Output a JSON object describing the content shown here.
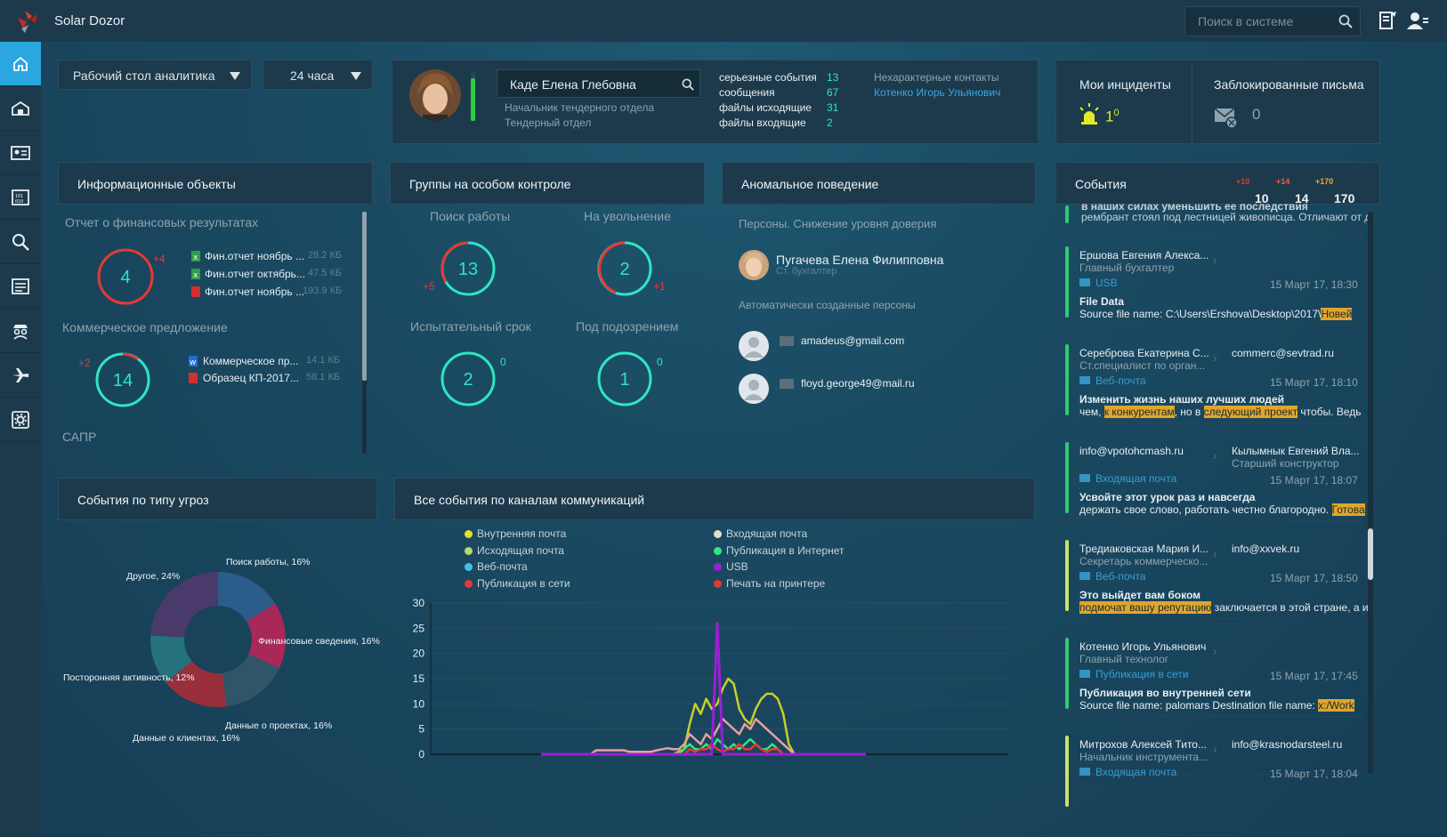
{
  "app": {
    "title": "Solar Dozor"
  },
  "search": {
    "placeholder": "Поиск в системе"
  },
  "sidebar": {
    "items": [
      "home",
      "dashboard",
      "contacts",
      "reports",
      "search",
      "documents",
      "agent",
      "travel",
      "settings"
    ]
  },
  "filters": {
    "workspace": "Рабочий стол аналитика",
    "period": "24 часа"
  },
  "person_card": {
    "name": "Каде Елена Глебовна",
    "position": "Начальник тендерного отдела",
    "department": "Тендерный отдел",
    "stats": [
      {
        "label": "серьезные события",
        "value": "13"
      },
      {
        "label": "сообщения",
        "value": "67"
      },
      {
        "label": "файлы исходящие",
        "value": "31"
      },
      {
        "label": "файлы входящие",
        "value": "2"
      }
    ],
    "contacts_title": "Нехарактерные контакты",
    "contacts_name": "Котенко Игорь Ульянович"
  },
  "my_incidents": {
    "title": "Мои инциденты",
    "count": "1",
    "sup": "0"
  },
  "blocked_mail": {
    "title": "Заблокированные письма",
    "count": "0"
  },
  "info_objects": {
    "title": "Информационные объекты",
    "group1": {
      "title": "Отчет о финансовых результатах",
      "value": "4",
      "delta": "+4",
      "files": [
        {
          "name": "Фин.отчет ноябрь ...",
          "size": "28.2 КБ"
        },
        {
          "name": "Фин.отчет октябрь...",
          "size": "47.5 КБ"
        },
        {
          "name": "Фин.отчет ноябрь ...",
          "size": "193.9 КБ"
        }
      ]
    },
    "group2": {
      "title": "Коммерческое предложение",
      "value": "14",
      "delta": "+2",
      "files": [
        {
          "name": "Коммерческое пр...",
          "size": "14.1 КБ"
        },
        {
          "name": "Образец КП-2017...",
          "size": "58.1 КБ"
        }
      ]
    },
    "group3": {
      "title": "САПР"
    }
  },
  "control_groups": {
    "title": "Группы на особом контроле",
    "items": [
      {
        "label": "Поиск работы",
        "value": "13",
        "delta": "+5"
      },
      {
        "label": "На увольнение",
        "value": "2",
        "delta": "+1"
      },
      {
        "label": "Испытательный срок",
        "value": "2",
        "delta": "0"
      },
      {
        "label": "Под подозрением",
        "value": "1",
        "delta": "0"
      }
    ]
  },
  "anomaly": {
    "title": "Аномальное поведение",
    "section1": "Персоны. Снижение уровня доверия",
    "person_name": "Пугачева Елена Филипповна",
    "person_role": "Ст. бухгалтер",
    "section2": "Автоматически созданные персоны",
    "auto": [
      "amadeus@gmail.com",
      "floyd.george49@mail.ru"
    ]
  },
  "events": {
    "title": "События",
    "badges": [
      {
        "value": "10",
        "sup": "+10",
        "color": "#e53935"
      },
      {
        "value": "14",
        "sup": "+14",
        "color": "#ff5a3c"
      },
      {
        "value": "170",
        "sup": "+170",
        "color": "#f5a623"
      }
    ],
    "top_snippet_1": "в наших силах уменьшить ее последствия",
    "top_snippet_2": "рембрант стоял под лестницей живописца. Отличают от д",
    "list": [
      {
        "from": "Ершова Евгения Алекса...",
        "from_role": "Главный бухгалтер",
        "to": "",
        "to_role": "",
        "channel": "USB",
        "time": "15 Март 17, 18:30",
        "subject": "File Data",
        "body_pre": "Source file name: C:\\Users\\Ershova\\Desktop\\2017\\",
        "hl1": "Новей",
        "body_mid": "",
        "hl2": "",
        "body_post": "",
        "color": "#2ecc71"
      },
      {
        "from": "Сереброва Екатерина С...",
        "from_role": "Ст.специалист по орган...",
        "to": "commerc@sevtrad.ru",
        "to_role": "",
        "channel": "Веб-почта",
        "time": "15 Март 17, 18:10",
        "subject": "Изменить жизнь наших лучших людей",
        "body_pre": "чем, ",
        "hl1": "к конкурентам",
        "body_mid": ", но в ",
        "hl2": "следующий проект",
        "body_post": " чтобы. Ведь",
        "color": "#2ecc71"
      },
      {
        "from": "info@vpotohcmash.ru",
        "from_role": "",
        "to": "Кылымнык Евгений Вла...",
        "to_role": "Старший конструктор",
        "channel": "Входящая почта",
        "time": "15 Март 17, 18:07",
        "subject": "Усвойте этот урок раз и навсегда",
        "body_pre": "держать свое слово, работать честно благородно. ",
        "hl1": "Готова",
        "body_mid": "",
        "hl2": "",
        "body_post": "",
        "color": "#2ecc71"
      },
      {
        "from": "Тредиаковская Мария И...",
        "from_role": "Секретарь коммерческо...",
        "to": "info@xxvek.ru",
        "to_role": "",
        "channel": "Веб-почта",
        "time": "15 Март 17, 18:50",
        "subject": "Это выйдет вам боком",
        "body_pre": "",
        "hl1": "подмочат вашу репутацию",
        "body_mid": " заключается в этой стране, а и",
        "hl2": "",
        "body_post": "",
        "color": "#c7e26b"
      },
      {
        "from": "Котенко Игорь Ульянович",
        "from_role": "Главный технолог",
        "to": "",
        "to_role": "",
        "channel": "Публикация в сети",
        "time": "15 Март 17, 17:45",
        "subject": "Публикация во внутренней сети",
        "body_pre": "Source file name: palomars Destination file name: ",
        "hl1": "x:/Work",
        "body_mid": "",
        "hl2": "",
        "body_post": "",
        "color": "#2ecc71"
      },
      {
        "from": "Митрохов Алексей Тито...",
        "from_role": "Начальник инструмента...",
        "to": "info@krasnodarsteel.ru",
        "to_role": "",
        "channel": "Входящая почта",
        "time": "15 Март 17, 18:04",
        "subject": "",
        "body_pre": "",
        "hl1": "",
        "body_mid": "",
        "hl2": "",
        "body_post": "",
        "color": "#c7e26b"
      }
    ]
  },
  "threats": {
    "title": "События по типу угроз",
    "chart_data": {
      "type": "pie",
      "slices": [
        {
          "label": "Поиск работы, 16%",
          "value": 16,
          "color": "#2a5d8a"
        },
        {
          "label": "Финансовые сведения, 16%",
          "value": 16,
          "color": "#a8285a"
        },
        {
          "label": "Данные о проектах, 16%",
          "value": 16,
          "color": "#2f5566"
        },
        {
          "label": "Данные о клиентах, 16%",
          "value": 16,
          "color": "#9a2f3c"
        },
        {
          "label": "Посторонняя активность, 12%",
          "value": 12,
          "color": "#25717c"
        },
        {
          "label": "Другое, 24%",
          "value": 24,
          "color": "#4a3a6b"
        }
      ]
    }
  },
  "channels": {
    "title": "Все события по каналам коммуникаций",
    "legend": [
      {
        "name": "Внутренняя почта",
        "color": "#e6e02a"
      },
      {
        "name": "Исходящая почта",
        "color": "#b5d96b"
      },
      {
        "name": "Веб-почта",
        "color": "#3ec3e8"
      },
      {
        "name": "Публикация в сети",
        "color": "#e53935"
      },
      {
        "name": "Входящая почта",
        "color": "#e8dcc4"
      },
      {
        "name": "Публикация в Интернет",
        "color": "#2ee680"
      },
      {
        "name": "USB",
        "color": "#9b1fd6"
      },
      {
        "name": "Печать на принтере",
        "color": "#e53935"
      }
    ],
    "chart_data": {
      "type": "line",
      "ylim": [
        0,
        30
      ],
      "yticks": [
        "0",
        "5",
        "10",
        "15",
        "20",
        "25",
        "30"
      ],
      "x_count": 60,
      "series": [
        {
          "name": "Внутренняя почта",
          "color": "#c9cf2a",
          "values": [
            0,
            0,
            0,
            0,
            0,
            0,
            0,
            0,
            0,
            0,
            0,
            0,
            0,
            0,
            0,
            0,
            0,
            0,
            0,
            0,
            0,
            0,
            0,
            0,
            0,
            0.5,
            1,
            6,
            10,
            8,
            11,
            9,
            10,
            13,
            15,
            14,
            9,
            7,
            6,
            9,
            11,
            12,
            12,
            11,
            8,
            2,
            0,
            0,
            0,
            0,
            0,
            0,
            0,
            0,
            0,
            0,
            0,
            0,
            0,
            0
          ]
        },
        {
          "name": "Входящая почта",
          "color": "#e8a0a0",
          "values": [
            0,
            0,
            0,
            0,
            0,
            0,
            0,
            0,
            0,
            0,
            0.8,
            0.8,
            0.8,
            0.8,
            0.8,
            0.8,
            0.5,
            0.5,
            0.5,
            0.5,
            0.5,
            0.8,
            1,
            1.2,
            1,
            1,
            2,
            4,
            3,
            2,
            4,
            3,
            5,
            7,
            6,
            5,
            4,
            6,
            5,
            7,
            6,
            5,
            4,
            3,
            2,
            1,
            0,
            0,
            0,
            0,
            0,
            0,
            0,
            0,
            0,
            0,
            0,
            0,
            0,
            0
          ]
        },
        {
          "name": "Публикация в Интернет",
          "color": "#2ee680",
          "values": [
            0,
            0,
            0,
            0,
            0,
            0,
            0,
            0,
            0,
            0,
            0,
            0,
            0,
            0,
            0,
            0,
            0,
            0,
            0,
            0,
            0,
            0,
            0,
            0,
            0,
            0,
            1,
            2,
            1,
            1,
            2,
            1,
            3,
            2,
            1,
            2,
            1,
            2,
            3,
            2,
            1,
            1,
            2,
            1,
            0,
            0,
            0,
            0,
            0,
            0,
            0,
            0,
            0,
            0,
            0,
            0,
            0,
            0,
            0,
            0
          ]
        },
        {
          "name": "Публикация в сети",
          "color": "#e53935",
          "values": [
            0,
            0,
            0,
            0,
            0,
            0,
            0,
            0,
            0,
            0,
            0,
            0,
            0,
            0,
            0,
            0,
            0,
            0,
            0,
            0,
            0,
            0,
            0,
            0,
            0,
            0,
            0,
            1,
            0.5,
            1,
            1,
            2,
            1,
            0.5,
            1,
            1,
            2,
            1,
            1,
            2,
            1,
            0.5,
            1,
            1,
            0,
            0,
            0,
            0,
            0,
            0,
            0,
            0,
            0,
            0,
            0,
            0,
            0,
            0,
            0,
            0
          ]
        },
        {
          "name": "USB",
          "color": "#9b1fd6",
          "values": [
            0,
            0,
            0,
            0,
            0,
            0,
            0,
            0,
            0,
            0,
            0,
            0,
            0,
            0,
            0,
            0,
            0,
            0,
            0,
            0,
            0,
            0,
            0,
            0,
            0,
            0,
            0,
            0,
            0,
            0,
            0,
            0,
            26,
            0,
            0,
            0,
            0,
            0,
            0,
            0,
            0,
            0,
            0,
            0,
            0,
            0,
            0,
            0,
            0,
            0,
            0,
            0,
            0,
            0,
            0,
            0,
            0,
            0,
            0,
            0
          ]
        }
      ]
    }
  },
  "colors": {
    "accent": "#2aa6e0",
    "teal": "#2ee6c2",
    "red": "#e53935"
  }
}
